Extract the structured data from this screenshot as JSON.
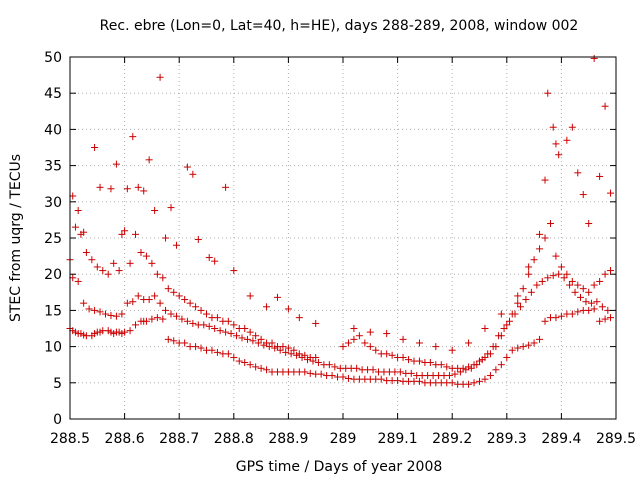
{
  "chart_data": {
    "type": "scatter",
    "title": "Rec. ebre (Lon=0, Lat=40, h=HE), days 288-289, 2008, window 002",
    "xlabel": "GPS time / Days of year 2008",
    "ylabel": "STEC from uqrg / TECUs",
    "xlim": [
      288.5,
      289.5
    ],
    "ylim": [
      0,
      50
    ],
    "x_ticks": [
      "288.5",
      "288.6",
      "288.7",
      "288.8",
      "288.9",
      "289",
      "289.1",
      "289.2",
      "289.3",
      "289.4",
      "289.5"
    ],
    "y_ticks": [
      "0",
      "5",
      "10",
      "15",
      "20",
      "25",
      "30",
      "35",
      "40",
      "45",
      "50"
    ],
    "grid": true,
    "marker": "+",
    "color": "#cc0000",
    "series": [
      {
        "x": [
          288.5,
          288.505,
          288.51,
          288.515,
          288.52,
          288.525,
          288.53,
          288.54,
          288.545,
          288.55,
          288.555,
          288.56,
          288.57,
          288.575,
          288.58,
          288.585,
          288.59,
          288.595,
          288.6,
          288.61,
          288.62,
          288.63,
          288.635,
          288.64,
          288.65,
          288.66,
          288.67,
          288.68,
          288.69,
          288.7,
          288.71,
          288.72,
          288.73,
          288.74,
          288.75,
          288.76,
          288.77,
          288.78,
          288.79,
          288.8,
          288.81,
          288.82,
          288.83,
          288.84,
          288.85,
          288.86,
          288.87,
          288.88,
          288.89,
          288.9,
          288.91,
          288.92,
          288.93,
          288.94,
          288.95,
          288.96,
          288.97,
          288.98,
          288.99,
          289.0,
          289.01,
          289.02,
          289.03,
          289.04,
          289.05,
          289.06,
          289.07,
          289.08,
          289.09,
          289.1,
          289.11,
          289.12,
          289.13,
          289.14,
          289.15,
          289.16,
          289.17,
          289.18,
          289.19,
          289.2,
          289.21,
          289.22,
          289.23,
          289.24,
          289.25,
          289.26,
          289.27,
          289.28,
          289.29,
          289.3,
          289.31,
          289.32,
          289.33,
          289.34,
          289.35,
          289.36,
          289.37,
          289.38,
          289.39,
          289.4,
          289.41,
          289.42,
          289.43,
          289.44,
          289.45,
          289.46,
          289.47,
          289.48,
          289.49
        ],
        "y": [
          12.5,
          12.2,
          12.0,
          11.8,
          11.8,
          11.6,
          11.5,
          11.5,
          11.8,
          12.0,
          12.0,
          12.2,
          12.2,
          12.0,
          11.8,
          12.0,
          12.0,
          11.8,
          12.0,
          12.2,
          13.0,
          13.5,
          13.5,
          13.5,
          13.8,
          14.0,
          13.8,
          11.0,
          10.8,
          10.5,
          10.5,
          10.0,
          10.0,
          9.8,
          9.5,
          9.5,
          9.2,
          9.0,
          9.0,
          8.5,
          8.0,
          7.8,
          7.5,
          7.2,
          7.0,
          6.8,
          6.5,
          6.5,
          6.5,
          6.5,
          6.5,
          6.5,
          6.5,
          6.3,
          6.2,
          6.2,
          6.0,
          6.0,
          5.8,
          5.8,
          5.6,
          5.5,
          5.5,
          5.5,
          5.5,
          5.5,
          5.5,
          5.3,
          5.3,
          5.3,
          5.2,
          5.2,
          5.2,
          5.2,
          5.0,
          5.0,
          5.0,
          5.0,
          5.0,
          5.0,
          4.8,
          4.8,
          4.8,
          5.0,
          5.2,
          5.5,
          6.0,
          6.8,
          7.5,
          8.5,
          9.5,
          9.8,
          10.0,
          10.2,
          10.5,
          11.0,
          13.5,
          14.0,
          14.0,
          14.2,
          14.5,
          14.5,
          14.8,
          15.0,
          15.0,
          15.2,
          13.5,
          13.8,
          14.0
        ]
      },
      {
        "x": [
          288.505,
          288.515,
          288.525,
          288.535,
          288.545,
          288.555,
          288.565,
          288.575,
          288.585,
          288.595,
          288.605,
          288.615,
          288.625,
          288.635,
          288.645,
          288.655,
          288.665,
          288.675,
          288.685,
          288.695,
          288.705,
          288.715,
          288.725,
          288.735,
          288.745,
          288.755,
          288.765,
          288.775,
          288.785,
          288.795,
          288.805,
          288.815,
          288.825,
          288.835,
          288.845,
          288.855,
          288.865,
          288.875,
          288.885,
          288.895,
          288.905,
          288.915,
          288.925,
          288.935,
          288.945,
          288.955,
          288.965,
          288.975,
          288.985,
          288.995,
          289.005,
          289.015,
          289.025,
          289.035,
          289.045,
          289.055,
          289.065,
          289.075,
          289.085,
          289.095,
          289.105,
          289.115,
          289.125,
          289.135,
          289.145,
          289.155,
          289.165,
          289.175,
          289.185,
          289.195,
          289.205,
          289.215,
          289.225,
          289.235,
          289.245,
          289.255,
          289.265,
          289.275,
          289.285,
          289.295,
          289.305,
          289.315,
          289.325,
          289.335,
          289.345,
          289.355,
          289.365,
          289.375,
          289.385,
          289.395,
          289.405,
          289.415,
          289.425,
          289.435,
          289.445,
          289.455,
          289.465,
          289.475,
          289.485
        ],
        "y": [
          19.5,
          19.0,
          16.0,
          15.2,
          15.0,
          14.8,
          14.5,
          14.3,
          14.2,
          14.5,
          16.0,
          16.2,
          17.0,
          16.5,
          16.5,
          17.0,
          16.0,
          15.0,
          14.5,
          14.2,
          13.8,
          13.5,
          13.2,
          13.0,
          13.0,
          12.8,
          12.5,
          12.2,
          12.0,
          11.8,
          11.5,
          11.2,
          11.0,
          10.8,
          10.5,
          10.2,
          10.0,
          9.8,
          9.5,
          9.2,
          9.0,
          8.8,
          8.5,
          8.2,
          8.0,
          7.8,
          7.5,
          7.5,
          7.2,
          7.0,
          7.0,
          7.0,
          7.0,
          6.8,
          6.8,
          6.8,
          6.5,
          6.5,
          6.5,
          6.5,
          6.5,
          6.3,
          6.3,
          6.0,
          6.0,
          6.0,
          6.0,
          6.0,
          6.0,
          6.0,
          6.2,
          6.5,
          6.8,
          7.0,
          7.5,
          8.2,
          9.0,
          10.0,
          11.5,
          12.5,
          13.5,
          14.5,
          15.5,
          16.5,
          17.5,
          18.5,
          19.0,
          19.5,
          19.8,
          20.0,
          19.5,
          18.5,
          17.5,
          16.8,
          16.2,
          16.0,
          16.2,
          15.5,
          15.0
        ]
      },
      {
        "x": [
          288.5,
          288.51,
          288.52,
          288.53,
          288.54,
          288.55,
          288.56,
          288.57,
          288.58,
          288.59,
          288.6,
          288.61,
          288.62,
          288.63,
          288.64,
          288.65,
          288.66,
          288.67,
          288.68,
          288.69,
          288.7,
          288.71,
          288.72,
          288.73,
          288.74,
          288.75,
          288.76,
          288.77,
          288.78,
          288.79,
          288.8,
          288.81,
          288.82,
          288.83,
          288.84,
          288.85,
          288.86,
          288.87,
          288.88,
          288.89,
          288.9,
          288.91,
          288.92,
          288.93,
          288.94,
          288.95,
          289.0,
          289.01,
          289.02,
          289.03,
          289.04,
          289.05,
          289.06,
          289.07,
          289.08,
          289.09,
          289.1,
          289.11,
          289.12,
          289.13,
          289.14,
          289.15,
          289.16,
          289.17,
          289.18,
          289.19,
          289.2,
          289.21,
          289.22,
          289.23,
          289.24,
          289.25,
          289.26,
          289.27,
          289.28,
          289.29,
          289.3,
          289.31,
          289.32,
          289.33,
          289.34,
          289.35,
          289.36,
          289.37,
          289.38,
          289.39,
          289.4,
          289.41,
          289.42,
          289.43,
          289.44,
          289.45,
          289.46,
          289.47,
          289.48,
          289.49
        ],
        "y": [
          22.0,
          26.5,
          25.5,
          23.0,
          22.0,
          21.0,
          20.5,
          20.0,
          21.5,
          20.5,
          26.0,
          21.5,
          25.5,
          23.0,
          22.5,
          21.5,
          20.0,
          19.5,
          18.0,
          17.5,
          17.0,
          16.5,
          16.0,
          15.5,
          15.0,
          14.5,
          14.0,
          14.0,
          13.5,
          13.5,
          13.0,
          12.5,
          12.5,
          12.0,
          11.5,
          11.0,
          10.5,
          10.5,
          10.0,
          10.0,
          9.8,
          9.5,
          9.0,
          8.8,
          8.5,
          8.5,
          10.0,
          10.5,
          11.0,
          11.5,
          10.5,
          10.0,
          9.5,
          9.0,
          9.0,
          8.8,
          8.5,
          8.5,
          8.2,
          8.0,
          8.0,
          7.8,
          7.8,
          7.5,
          7.5,
          7.2,
          7.0,
          7.0,
          7.0,
          7.2,
          7.5,
          8.0,
          8.5,
          9.0,
          10.0,
          11.5,
          13.0,
          14.5,
          16.0,
          18.0,
          20.0,
          22.0,
          23.5,
          25.0,
          27.0,
          22.5,
          21.0,
          20.0,
          19.0,
          18.5,
          18.0,
          17.5,
          18.5,
          19.0,
          20.0,
          20.5
        ]
      },
      {
        "x": [
          288.505,
          288.515,
          288.525,
          288.545,
          288.555,
          288.575,
          288.585,
          288.595,
          288.605,
          288.615,
          288.625,
          288.635,
          288.645,
          288.655,
          288.665,
          288.675,
          288.685,
          288.695,
          288.715,
          288.725,
          288.735,
          288.755,
          288.765,
          288.785,
          288.8,
          288.83,
          288.86,
          288.88,
          288.9,
          288.92,
          288.95,
          289.02,
          289.05,
          289.08,
          289.11,
          289.14,
          289.17,
          289.2,
          289.23,
          289.26,
          289.29,
          289.32,
          289.34,
          289.36,
          289.37,
          289.375,
          289.385,
          289.39,
          289.395,
          289.41,
          289.42,
          289.43,
          289.44,
          289.45,
          289.46,
          289.47,
          289.48,
          289.49
        ],
        "y": [
          30.8,
          28.8,
          25.8,
          37.5,
          32.0,
          31.8,
          35.2,
          25.5,
          31.8,
          39.0,
          32.0,
          31.5,
          35.8,
          28.8,
          47.2,
          25.0,
          29.2,
          24.0,
          34.8,
          33.8,
          24.8,
          22.3,
          21.8,
          32.0,
          20.5,
          17.0,
          15.5,
          16.8,
          15.2,
          14.0,
          13.2,
          12.5,
          12.0,
          11.8,
          11.0,
          10.5,
          10.0,
          9.5,
          10.5,
          12.5,
          14.5,
          17.0,
          21.0,
          25.5,
          33.0,
          45.0,
          40.3,
          38.0,
          36.5,
          38.5,
          40.3,
          34.0,
          31.0,
          27.0,
          49.8,
          33.5,
          43.2,
          31.2
        ]
      }
    ]
  }
}
